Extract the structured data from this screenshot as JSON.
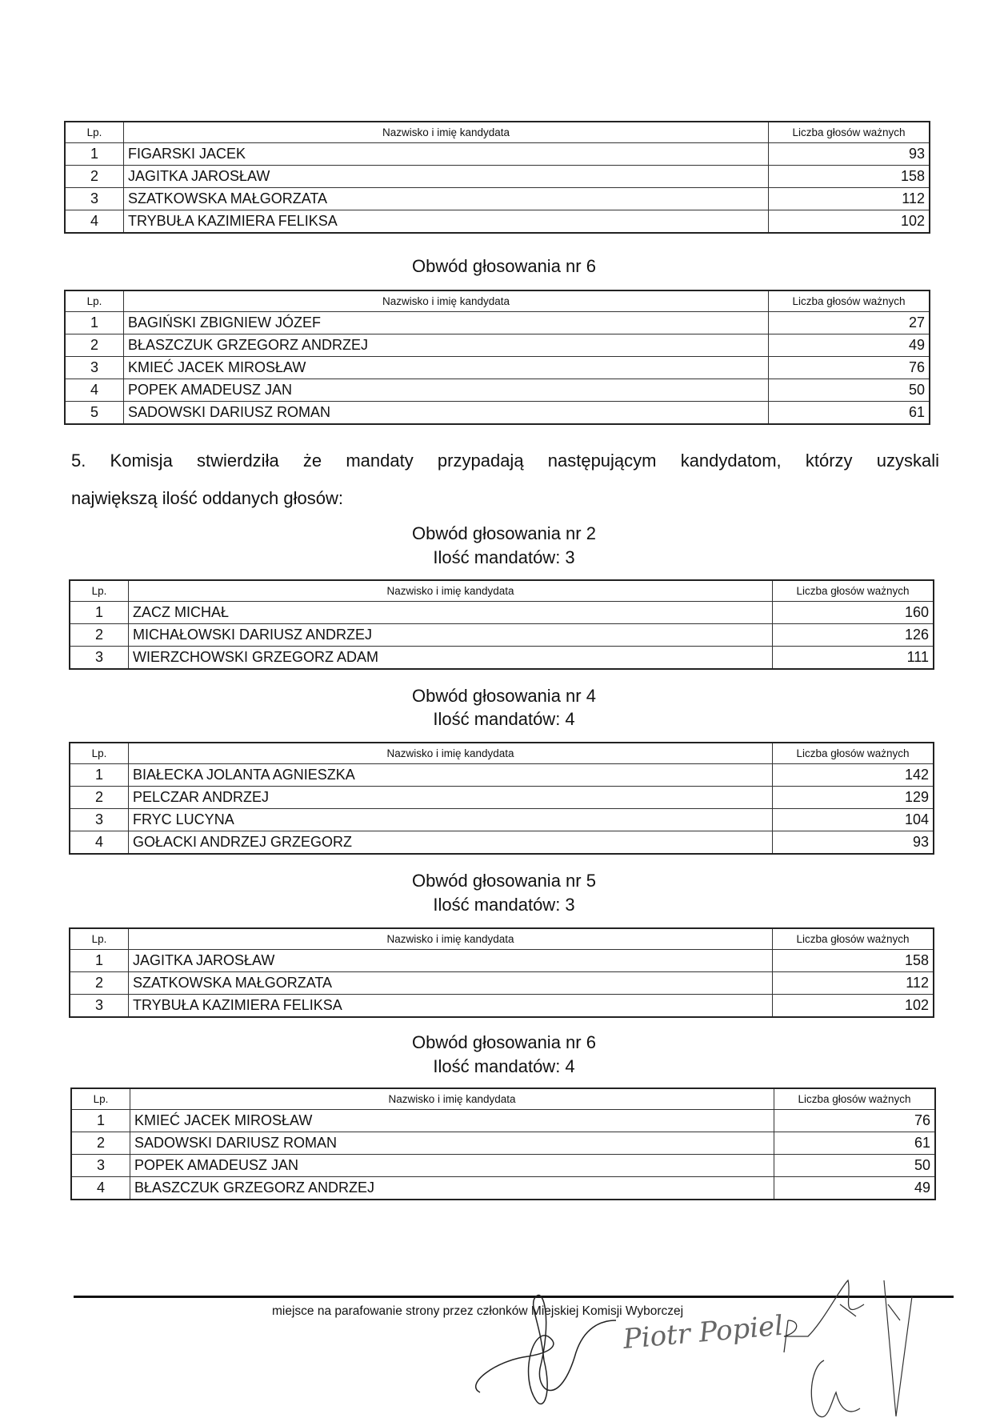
{
  "headers": {
    "lp": "Lp.",
    "name": "Nazwisko i imię kandydata",
    "votes": "Liczba głosów ważnych"
  },
  "tables": [
    {
      "rows": [
        [
          "1",
          "FIGARSKI JACEK",
          "93"
        ],
        [
          "2",
          "JAGITKA JAROSŁAW",
          "158"
        ],
        [
          "3",
          "SZATKOWSKA MAŁGORZATA",
          "112"
        ],
        [
          "4",
          "TRYBUŁA KAZIMIERA FELIKSA",
          "102"
        ]
      ]
    },
    {
      "title": "Obwód głosowania nr 6",
      "rows": [
        [
          "1",
          "BAGIŃSKI ZBIGNIEW JÓZEF",
          "27"
        ],
        [
          "2",
          "BŁASZCZUK GRZEGORZ ANDRZEJ",
          "49"
        ],
        [
          "3",
          "KMIEĆ JACEK MIROSŁAW",
          "76"
        ],
        [
          "4",
          "POPEK AMADEUSZ JAN",
          "50"
        ],
        [
          "5",
          "SADOWSKI DARIUSZ ROMAN",
          "61"
        ]
      ]
    },
    {
      "title": "Obwód głosowania nr 2",
      "subtitle": "Ilość mandatów: 3",
      "rows": [
        [
          "1",
          "ZACZ MICHAŁ",
          "160"
        ],
        [
          "2",
          "MICHAŁOWSKI DARIUSZ ANDRZEJ",
          "126"
        ],
        [
          "3",
          "WIERZCHOWSKI GRZEGORZ ADAM",
          "111"
        ]
      ]
    },
    {
      "title": "Obwód głosowania nr 4",
      "subtitle": "Ilość mandatów: 4",
      "rows": [
        [
          "1",
          "BIAŁECKA JOLANTA AGNIESZKA",
          "142"
        ],
        [
          "2",
          "PELCZAR ANDRZEJ",
          "129"
        ],
        [
          "3",
          "FRYC LUCYNA",
          "104"
        ],
        [
          "4",
          "GOŁACKI ANDRZEJ GRZEGORZ",
          "93"
        ]
      ]
    },
    {
      "title": "Obwód głosowania nr 5",
      "subtitle": "Ilość mandatów: 3",
      "rows": [
        [
          "1",
          "JAGITKA JAROSŁAW",
          "158"
        ],
        [
          "2",
          "SZATKOWSKA MAŁGORZATA",
          "112"
        ],
        [
          "3",
          "TRYBUŁA KAZIMIERA FELIKSA",
          "102"
        ]
      ]
    },
    {
      "title": "Obwód głosowania nr 6",
      "subtitle": "Ilość mandatów: 4",
      "rows": [
        [
          "1",
          "KMIEĆ JACEK MIROSŁAW",
          "76"
        ],
        [
          "2",
          "SADOWSKI DARIUSZ ROMAN",
          "61"
        ],
        [
          "3",
          "POPEK AMADEUSZ JAN",
          "50"
        ],
        [
          "4",
          "BŁASZCZUK GRZEGORZ ANDRZEJ",
          "49"
        ]
      ]
    }
  ],
  "paragraph": {
    "line1": "5. Komisja stwierdziła że mandaty przypadają następującym kandydatom, którzy uzyskali",
    "line2": "największą ilość oddanych głosów:"
  },
  "footer": {
    "text": "miejsce na parafowanie strony przez członków Miejskiej Komisji Wyborczej",
    "signature_text": "Piotr Popiel"
  }
}
